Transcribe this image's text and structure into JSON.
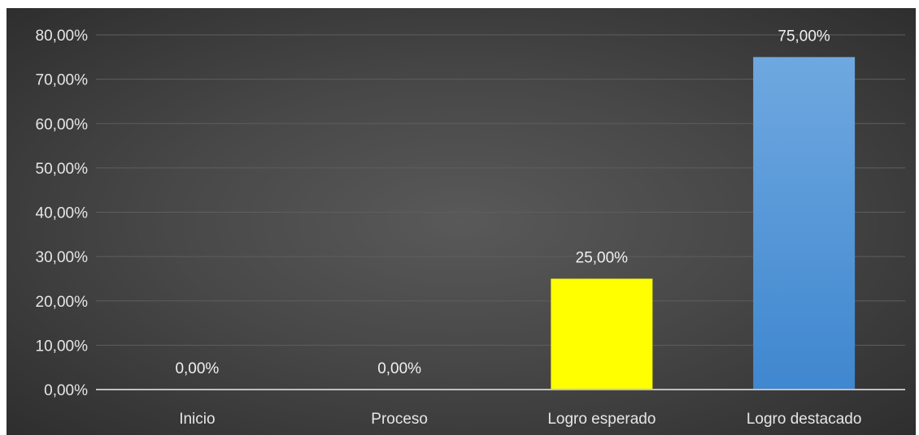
{
  "chart_data": {
    "type": "bar",
    "title": "",
    "xlabel": "",
    "ylabel": "",
    "categories": [
      "Inicio",
      "Proceso",
      "Logro esperado",
      "Logro destacado"
    ],
    "values": [
      0,
      0,
      25,
      75
    ],
    "data_labels": [
      "0,00%",
      "0,00%",
      "25,00%",
      "75,00%"
    ],
    "bar_colors": [
      "#4a8fd4",
      "#4a8fd4",
      "#ffff00",
      "#5b9bd5"
    ],
    "ylim": [
      0,
      80
    ],
    "yticks": [
      0,
      10,
      20,
      30,
      40,
      50,
      60,
      70,
      80
    ],
    "ytick_labels": [
      "0,00%",
      "10,00%",
      "20,00%",
      "30,00%",
      "40,00%",
      "50,00%",
      "60,00%",
      "70,00%",
      "80,00%"
    ],
    "grid": true,
    "legend": "none",
    "colors": {
      "background": "#4a4a4a",
      "gridline": "#5e5e5e",
      "axis_line": "#bfbfbf",
      "text": "#e6e6e6"
    }
  }
}
